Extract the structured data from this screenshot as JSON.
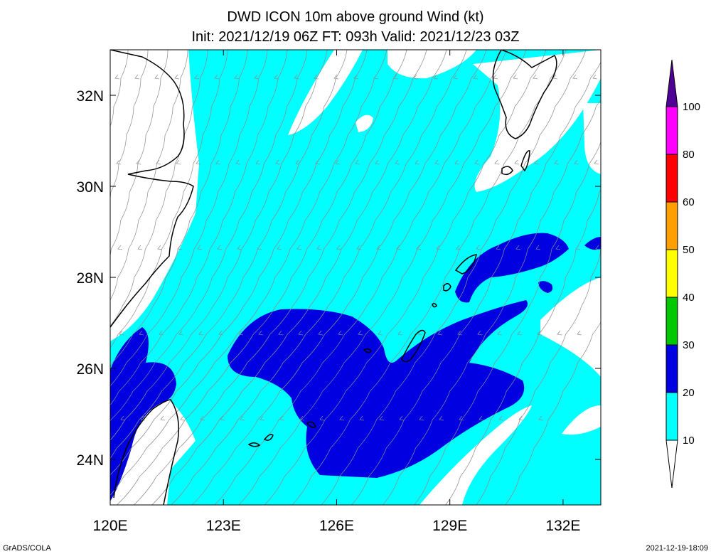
{
  "title": {
    "line1": "DWD ICON 10m above ground Wind (kt)",
    "line2": "Init: 2021/12/19 06Z  FT: 093h  Valid: 2021/12/23 03Z"
  },
  "axes": {
    "x_ticks": [
      "120E",
      "123E",
      "126E",
      "129E",
      "132E"
    ],
    "y_ticks": [
      "32N",
      "30N",
      "28N",
      "26N",
      "24N"
    ],
    "lon_range": [
      120,
      133
    ],
    "lat_range": [
      23,
      33
    ]
  },
  "colorbar": {
    "levels": [
      "10",
      "20",
      "30",
      "40",
      "50",
      "60",
      "80",
      "100"
    ],
    "colors": [
      "#ffffff",
      "#00ffff",
      "#0000e1",
      "#00c800",
      "#ffff00",
      "#ffa000",
      "#ff0000",
      "#ff00ff",
      "#500096"
    ]
  },
  "wind_colors": {
    "calm": "#ffffff",
    "light": "#00ffff",
    "moderate": "#0000e1",
    "streamline": "#8c8c8c",
    "coast": "#000000"
  },
  "footer": {
    "left": "GrADS/COLA",
    "right": "2021-12-19-18:09"
  }
}
